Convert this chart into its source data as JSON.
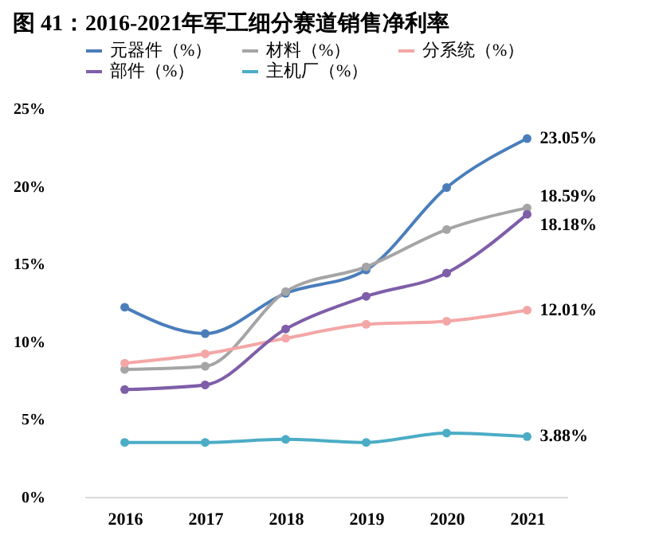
{
  "chart_data": {
    "type": "line",
    "title": "图 41：2016-2021年军工细分赛道销售净利率",
    "categories": [
      "2016",
      "2017",
      "2018",
      "2019",
      "2020",
      "2021"
    ],
    "series": [
      {
        "name": "元器件（%）",
        "color": "#4a7ebb",
        "values": [
          12.2,
          10.5,
          13.1,
          14.6,
          19.9,
          23.05
        ],
        "value_labels": [
          null,
          null,
          null,
          null,
          null,
          "23.05%"
        ]
      },
      {
        "name": "材料（%）",
        "color": "#a5a5a5",
        "values": [
          8.2,
          8.4,
          13.2,
          14.8,
          17.2,
          18.59
        ],
        "value_labels": [
          null,
          null,
          null,
          null,
          null,
          "18.59%"
        ]
      },
      {
        "name": "分系统（%）",
        "color": "#f4a6a6",
        "values": [
          8.6,
          9.2,
          10.2,
          11.1,
          11.3,
          12.01
        ],
        "value_labels": [
          null,
          null,
          null,
          null,
          null,
          "12.01%"
        ]
      },
      {
        "name": "部件（%）",
        "color": "#7e5ea8",
        "values": [
          6.9,
          7.2,
          10.8,
          12.9,
          14.4,
          18.18
        ],
        "value_labels": [
          null,
          null,
          null,
          null,
          null,
          "18.18%"
        ]
      },
      {
        "name": "主机厂（%）",
        "color": "#4bacc6",
        "values": [
          3.5,
          3.5,
          3.7,
          3.5,
          4.1,
          3.88
        ],
        "value_labels": [
          null,
          null,
          null,
          null,
          null,
          "3.88%"
        ]
      }
    ],
    "ylim": [
      0,
      25
    ],
    "yticks": [
      {
        "value": 0,
        "label": "0%"
      },
      {
        "value": 5,
        "label": "5%"
      },
      {
        "value": 10,
        "label": "10%"
      },
      {
        "value": 15,
        "label": "15%"
      },
      {
        "value": 20,
        "label": "20%"
      },
      {
        "value": 25,
        "label": "25%"
      }
    ],
    "grid": false,
    "legend": "top",
    "marker": "circle",
    "line_style": "solid"
  }
}
